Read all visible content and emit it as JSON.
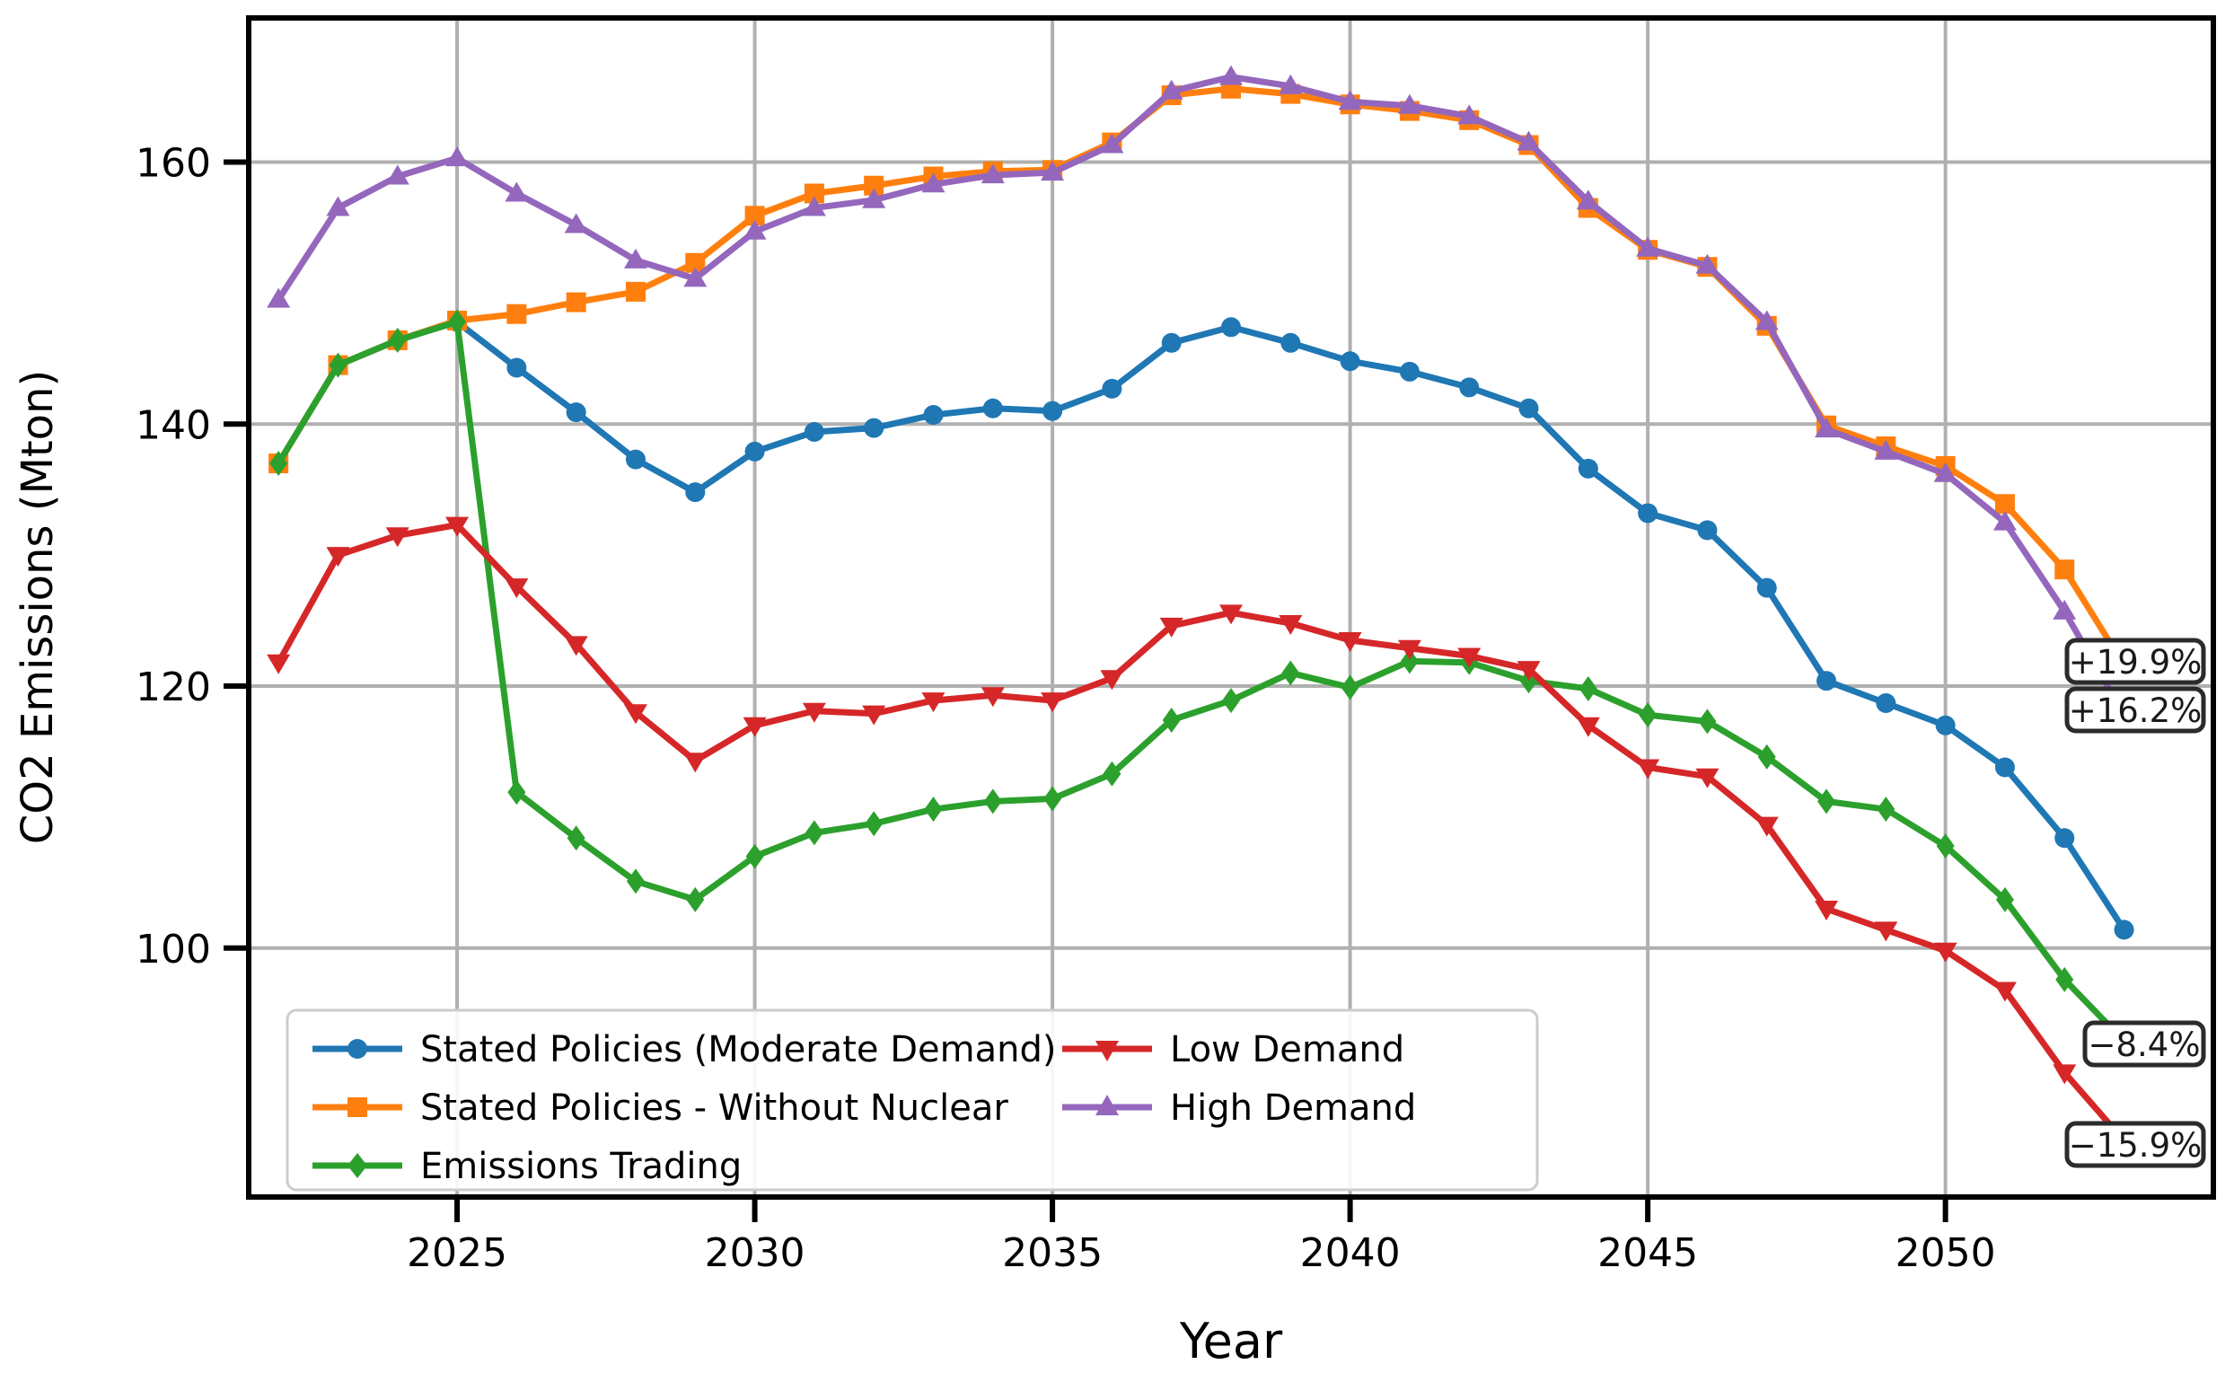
{
  "figure": {
    "xlabel": "Year",
    "ylabel": "CO2 Emissions (Mton)",
    "x_ticks": [
      "2025",
      "2030",
      "2035",
      "2040",
      "2045",
      "2050"
    ],
    "y_ticks": [
      "160",
      "140",
      "120",
      "100"
    ],
    "background_color": "#ffffff",
    "grid_color": "#b0b0b0"
  },
  "legend": {
    "position": "lower-left",
    "entries": [
      "Stated Policies (Moderate Demand)",
      "Stated Policies - Without Nuclear",
      "Emissions Trading",
      "Low Demand",
      "High Demand"
    ]
  },
  "annotations": [
    {
      "text": "+19.9%"
    },
    {
      "text": "+16.2%"
    },
    {
      "text": "−8.4%"
    },
    {
      "text": "−15.9%"
    }
  ],
  "chart_data": {
    "type": "line",
    "title": "",
    "xlabel": "Year",
    "ylabel": "CO2 Emissions (Mton)",
    "xlim": [
      2021.5,
      2054.5
    ],
    "ylim": [
      81,
      171
    ],
    "grid": true,
    "legend_position": "lower left",
    "x_ticks": [
      2025,
      2030,
      2035,
      2040,
      2045,
      2050
    ],
    "y_ticks": [
      160,
      140,
      120,
      100
    ],
    "x": [
      2022,
      2023,
      2024,
      2025,
      2026,
      2027,
      2028,
      2029,
      2030,
      2031,
      2032,
      2033,
      2034,
      2035,
      2036,
      2037,
      2038,
      2039,
      2040,
      2041,
      2042,
      2043,
      2044,
      2045,
      2046,
      2047,
      2048,
      2049,
      2050,
      2051,
      2052,
      2053
    ],
    "series": [
      {
        "name": "Stated Policies (Moderate Demand)",
        "color": "#1f77b4",
        "marker": "circle",
        "values": [
          137.0,
          144.5,
          146.4,
          147.8,
          144.3,
          140.9,
          137.3,
          134.8,
          137.9,
          139.4,
          139.7,
          140.7,
          141.2,
          141.0,
          142.7,
          146.2,
          147.4,
          146.2,
          144.8,
          144.0,
          142.8,
          141.2,
          136.6,
          133.2,
          131.9,
          127.5,
          120.4,
          118.7,
          117.0,
          113.8,
          108.4,
          101.4
        ]
      },
      {
        "name": "Stated Policies - Without Nuclear",
        "color": "#ff7f0e",
        "marker": "square",
        "values": [
          137.0,
          144.5,
          146.4,
          147.9,
          148.4,
          149.3,
          150.1,
          152.3,
          155.9,
          157.6,
          158.2,
          158.9,
          159.3,
          159.4,
          161.5,
          165.1,
          165.6,
          165.2,
          164.4,
          163.9,
          163.2,
          161.3,
          156.5,
          153.3,
          152.0,
          147.5,
          139.9,
          138.3,
          136.8,
          133.9,
          128.9,
          121.6
        ]
      },
      {
        "name": "Emissions Trading",
        "color": "#2ca02c",
        "marker": "thin-diamond",
        "values": [
          137.0,
          144.5,
          146.4,
          147.8,
          111.9,
          108.4,
          105.1,
          103.7,
          107.0,
          108.8,
          109.5,
          110.6,
          111.2,
          111.4,
          113.3,
          117.4,
          118.9,
          121.0,
          119.9,
          121.9,
          121.8,
          120.4,
          119.8,
          117.8,
          117.3,
          114.6,
          111.2,
          110.6,
          107.8,
          103.7,
          97.6,
          92.9
        ]
      },
      {
        "name": "Low Demand",
        "color": "#d62728",
        "marker": "triangle-down",
        "values": [
          121.8,
          130.0,
          131.5,
          132.3,
          127.6,
          123.2,
          118.0,
          114.3,
          117.0,
          118.1,
          117.9,
          118.9,
          119.3,
          118.9,
          120.6,
          124.6,
          125.6,
          124.8,
          123.5,
          122.9,
          122.3,
          121.3,
          117.0,
          113.8,
          113.1,
          109.4,
          103.0,
          101.4,
          99.8,
          96.8,
          90.5,
          85.3
        ]
      },
      {
        "name": "High Demand",
        "color": "#9467bd",
        "marker": "triangle-up",
        "values": [
          149.5,
          156.5,
          158.9,
          160.3,
          157.6,
          155.2,
          152.5,
          151.1,
          154.7,
          156.5,
          157.1,
          158.3,
          159.0,
          159.2,
          161.3,
          165.4,
          166.5,
          165.8,
          164.6,
          164.3,
          163.5,
          161.5,
          157.0,
          153.4,
          152.1,
          147.8,
          139.6,
          137.9,
          136.2,
          132.5,
          125.7,
          117.8
        ]
      }
    ],
    "annotations": [
      {
        "text": "+19.9%",
        "series": "Stated Policies - Without Nuclear",
        "year": 2053,
        "value": 121.6
      },
      {
        "text": "+16.2%",
        "series": "High Demand",
        "year": 2053,
        "value": 117.8
      },
      {
        "text": "−8.4%",
        "series": "Emissions Trading",
        "year": 2053,
        "value": 92.9
      },
      {
        "text": "−15.9%",
        "series": "Low Demand",
        "year": 2053,
        "value": 85.3
      }
    ]
  }
}
